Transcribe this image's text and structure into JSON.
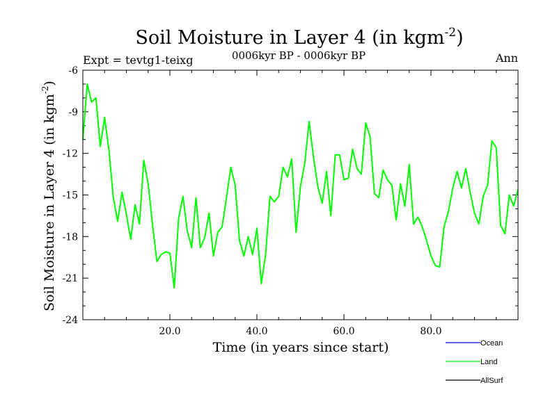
{
  "chart_data": {
    "type": "line",
    "title": "Soil Moisture in Layer 4 (in kgm",
    "title_sup": "-2",
    "title_close": ")",
    "subtitle": "0006kyr BP - 0006kyr BP",
    "left_label": "Expt = tevtg1-teixg",
    "right_label": "Ann",
    "xlabel": "Time (in years since start)",
    "ylabel": "Soil Moisture in Layer 4 (in kgm",
    "ylabel_sup": "-2",
    "ylabel_close": ")",
    "xlim": [
      0,
      100
    ],
    "ylim": [
      -24,
      -6
    ],
    "xticks": [
      20,
      40,
      60,
      80
    ],
    "xtick_labels": [
      "20.0",
      "40.0",
      "60.0",
      "80.0"
    ],
    "yticks": [
      -6,
      -9,
      -12,
      -15,
      -18,
      -21,
      -24
    ],
    "ytick_labels": [
      "-6",
      "-9",
      "-12",
      "-15",
      "-18",
      "-21",
      "-24"
    ],
    "legend": [
      {
        "name": "Ocean",
        "color": "#0000ff"
      },
      {
        "name": "Land",
        "color": "#00ff00"
      },
      {
        "name": "AllSurf",
        "color": "#000000"
      }
    ],
    "series": [
      {
        "name": "Land",
        "color": "#00ff00",
        "x": [
          0,
          1,
          2,
          3,
          4,
          5,
          6,
          7,
          8,
          9,
          10,
          11,
          12,
          13,
          14,
          15,
          16,
          17,
          18,
          19,
          20,
          21,
          22,
          23,
          24,
          25,
          26,
          27,
          28,
          29,
          30,
          31,
          32,
          33,
          34,
          35,
          36,
          37,
          38,
          39,
          40,
          41,
          42,
          43,
          44,
          45,
          46,
          47,
          48,
          49,
          50,
          51,
          52,
          53,
          54,
          55,
          56,
          57,
          58,
          59,
          60,
          61,
          62,
          63,
          64,
          65,
          66,
          67,
          68,
          69,
          70,
          71,
          72,
          73,
          74,
          75,
          76,
          77,
          78,
          79,
          80,
          81,
          82,
          83,
          84,
          85,
          86,
          87,
          88,
          89,
          90,
          91,
          92,
          93,
          94,
          95,
          96,
          97,
          98,
          99,
          100
        ],
        "values": [
          -11.0,
          -7.0,
          -8.3,
          -8.0,
          -11.5,
          -9.4,
          -11.8,
          -15.2,
          -16.9,
          -14.8,
          -16.4,
          -18.2,
          -15.7,
          -17.1,
          -12.5,
          -14.2,
          -17.1,
          -19.8,
          -19.3,
          -19.1,
          -19.2,
          -21.7,
          -16.7,
          -15.1,
          -17.6,
          -18.8,
          -15.2,
          -18.8,
          -18.1,
          -16.3,
          -19.4,
          -17.7,
          -17.3,
          -15.2,
          -13.0,
          -14.3,
          -18.3,
          -19.4,
          -18.0,
          -19.3,
          -17.4,
          -21.4,
          -19.3,
          -15.1,
          -15.5,
          -15.1,
          -13.0,
          -13.7,
          -12.4,
          -17.7,
          -14.4,
          -12.7,
          -9.7,
          -12.3,
          -14.4,
          -15.6,
          -13.3,
          -16.5,
          -12.1,
          -12.1,
          -13.9,
          -13.8,
          -11.7,
          -13.1,
          -13.5,
          -9.8,
          -10.8,
          -14.9,
          -15.2,
          -13.2,
          -13.9,
          -14.3,
          -16.8,
          -14.2,
          -15.8,
          -12.8,
          -17.1,
          -16.6,
          -17.3,
          -18.3,
          -19.4,
          -20.1,
          -20.2,
          -17.3,
          -16.2,
          -14.5,
          -13.3,
          -14.5,
          -13.1,
          -14.8,
          -16.3,
          -17.1,
          -15.1,
          -14.3,
          -11.1,
          -11.6,
          -17.2,
          -17.8,
          -15.0,
          -15.8,
          -14.6
        ]
      }
    ]
  }
}
